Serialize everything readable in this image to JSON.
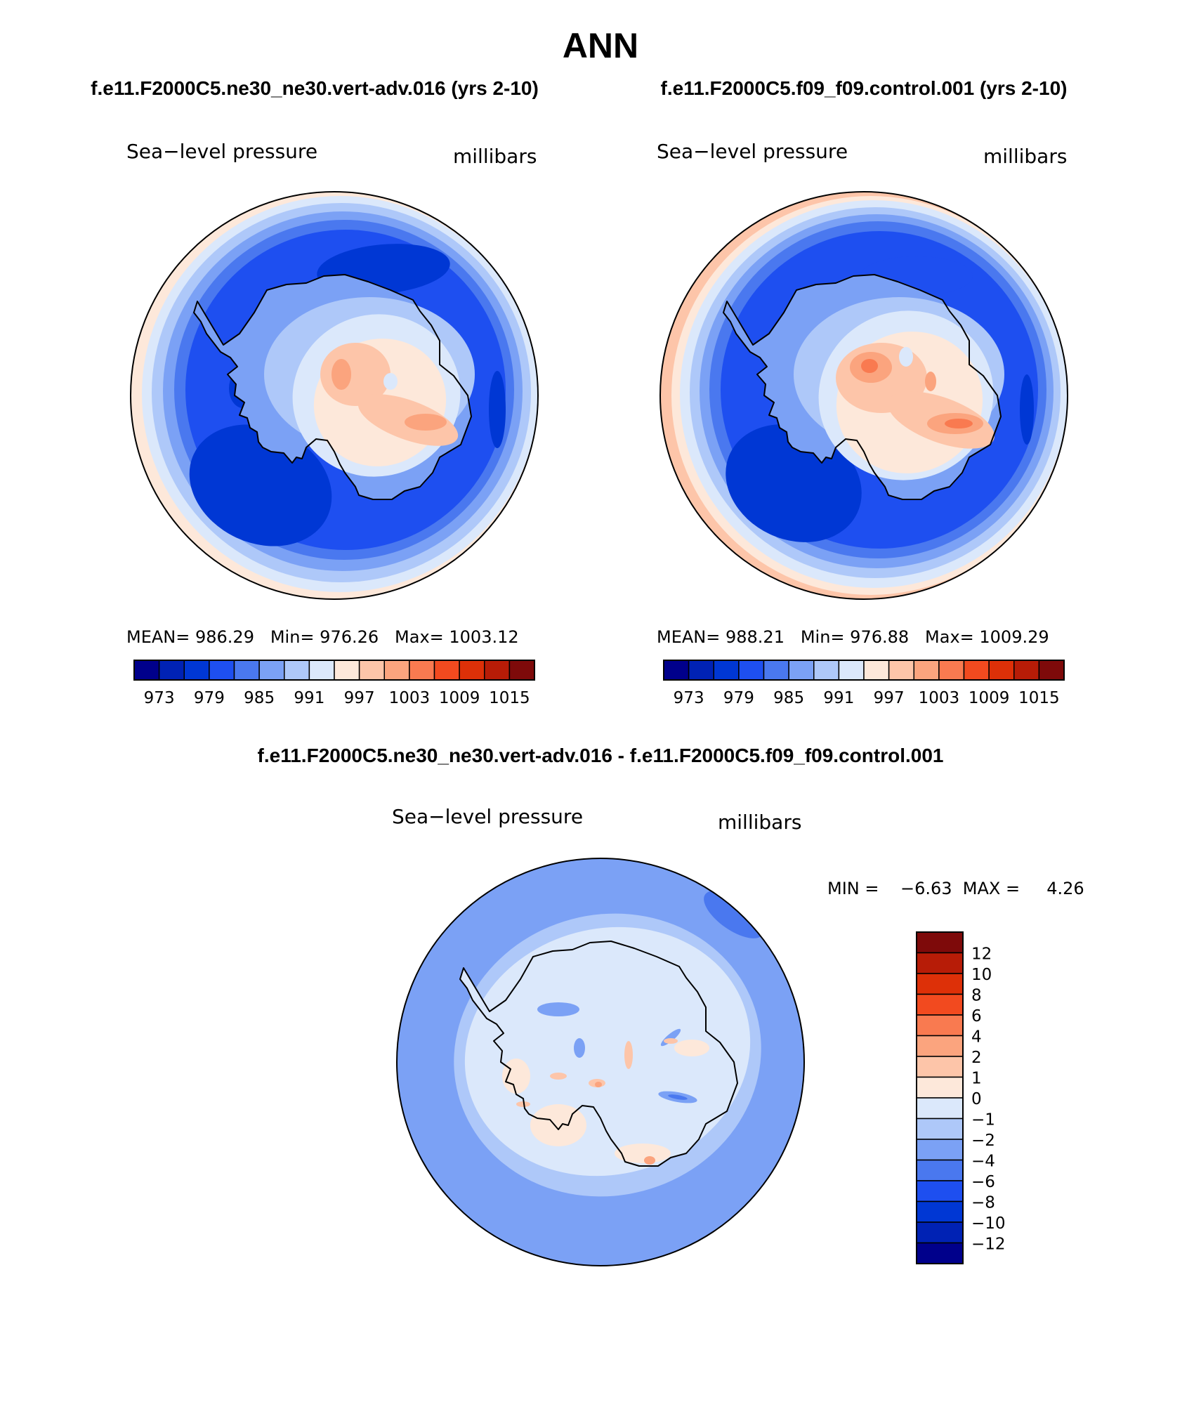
{
  "main_title": "ANN",
  "panels": {
    "top_left": {
      "case_title": "f.e11.F2000C5.ne30_ne30.vert-adv.016 (yrs 2-10)",
      "left_label": "Sea−level pressure",
      "right_label": "millibars",
      "stats": "MEAN= 986.29   Min= 976.26   Max= 1003.12"
    },
    "top_right": {
      "case_title": "f.e11.F2000C5.f09_f09.control.001 (yrs 2-10)",
      "left_label": "Sea−level pressure",
      "right_label": "millibars",
      "stats": "MEAN= 988.21   Min= 976.88   Max= 1009.29"
    },
    "bottom": {
      "case_title": "f.e11.F2000C5.ne30_ne30.vert-adv.016 - f.e11.F2000C5.f09_f09.control.001",
      "left_label": "Sea−level pressure",
      "right_label": "millibars",
      "stats": "MIN =    −6.63  MAX =     4.26"
    }
  },
  "colorbar_abs": {
    "colors": [
      "#00008b",
      "#0022b4",
      "#0037d4",
      "#1e4ff0",
      "#4a78ef",
      "#7ba1f5",
      "#aec8f9",
      "#dbe8fb",
      "#fde8da",
      "#fdc5a9",
      "#fba47e",
      "#f97a50",
      "#f24a1f",
      "#dd3008",
      "#b71c07",
      "#7e0a0a"
    ],
    "labels": [
      "973",
      "979",
      "985",
      "991",
      "997",
      "1003",
      "1009",
      "1015"
    ]
  },
  "colorbar_diff": {
    "colors": [
      "#7e0a0a",
      "#b71c07",
      "#dd3008",
      "#f24a1f",
      "#f97a50",
      "#fba47e",
      "#fdc5a9",
      "#fde8da",
      "#dbe8fb",
      "#aec8f9",
      "#7ba1f5",
      "#4a78ef",
      "#1e4ff0",
      "#0037d4",
      "#0022b4",
      "#00008b"
    ],
    "labels": [
      "12",
      "10",
      "8",
      "6",
      "4",
      "2",
      "1",
      "0",
      "−1",
      "−2",
      "−4",
      "−6",
      "−8",
      "−10",
      "−12"
    ]
  }
}
